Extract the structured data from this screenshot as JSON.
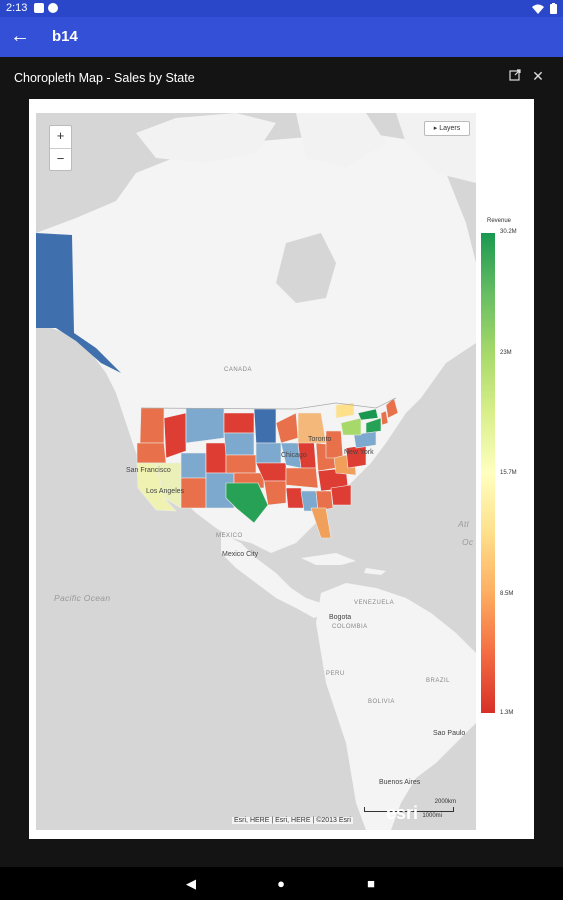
{
  "status_bar": {
    "time": "2:13"
  },
  "app_bar": {
    "title": "b14"
  },
  "panel": {
    "title": "Choropleth Map - Sales by State"
  },
  "map": {
    "zoom_in": "+",
    "zoom_out": "−",
    "layers_label": "▸ Layers",
    "labels": {
      "canada": "CANADA",
      "san_francisco": "San Francisco",
      "los_angeles": "Los Angeles",
      "chicago": "Chicago",
      "toronto": "Toronto",
      "new_york": "New York",
      "mexico": "MEXICO",
      "mexico_city": "Mexico City",
      "pacific_ocean": "Pacific Ocean",
      "venezuela": "VENEZUELA",
      "bogota": "Bogota",
      "colombia": "COLOMBIA",
      "peru": "PERU",
      "bolivia": "BOLIVIA",
      "brazil": "BRAZIL",
      "sao_paulo": "Sao Paulo",
      "buenos_aires": "Buenos Aires",
      "atlantic_partial": "Atl",
      "ocean_partial": "Oc"
    },
    "attribution": "Esri, HERE | Esri, HERE | ©2013 Esri",
    "esri_logo": "esri",
    "scale": {
      "top": "2000km",
      "bottom": "1000mi"
    }
  },
  "legend": {
    "title": "Revenue",
    "ticks": [
      "30.2M",
      "23M",
      "15.7M",
      "8.5M",
      "1.3M"
    ],
    "colors": [
      "#1a9850",
      "#a6d96a",
      "#ffffbf",
      "#fdae61",
      "#d73027"
    ]
  }
}
